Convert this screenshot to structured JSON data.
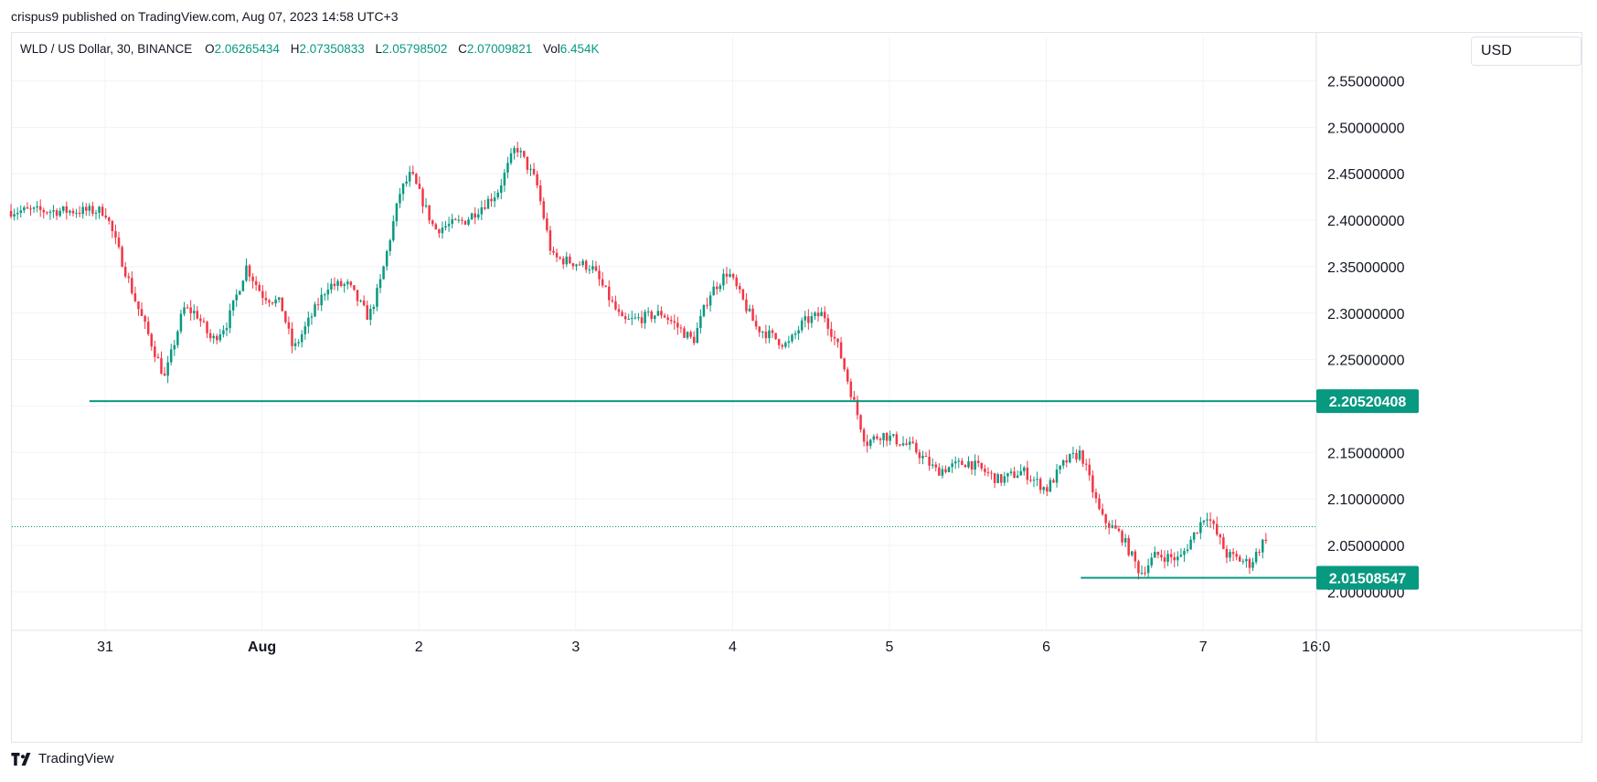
{
  "header": {
    "publisher_line": "crispus9 published on TradingView.com, Aug 07, 2023 14:58 UTC+3"
  },
  "legend": {
    "symbol": "WLD / US Dollar, 30, BINANCE",
    "open_label": "O",
    "open": "2.06265434",
    "high_label": "H",
    "high": "2.07350833",
    "low_label": "L",
    "low": "2.05798502",
    "close_label": "C",
    "close": "2.07009821",
    "vol_label": "Vol",
    "vol": "6.454K",
    "value_color": "#089981"
  },
  "currency_button": "USD",
  "footer": {
    "brand": "TradingView",
    "logo_icon": "tradingview-logo-icon"
  },
  "colors": {
    "up": "#089981",
    "down": "#f23645",
    "level": "#089981",
    "grid": "#f0f3fa"
  },
  "chart_data": {
    "type": "candlestick",
    "title": "",
    "xlabel": "",
    "ylabel": "",
    "x_ticks": [
      "31",
      "Aug",
      "2",
      "3",
      "4",
      "5",
      "6",
      "7",
      "16:0"
    ],
    "y_ticks": [
      "2.55000000",
      "2.50000000",
      "2.45000000",
      "2.40000000",
      "2.35000000",
      "2.30000000",
      "2.25000000",
      "2.15000000",
      "2.10000000",
      "2.05000000",
      "2.00000000"
    ],
    "ylim": [
      1.96,
      2.575
    ],
    "bars_per_day": 48,
    "x_start_day_offset": -1.54,
    "close_path": [
      [
        0,
        2.41
      ],
      [
        0.07,
        2.375
      ],
      [
        0.2,
        2.31
      ],
      [
        0.38,
        2.23
      ],
      [
        0.5,
        2.305
      ],
      [
        0.58,
        2.3
      ],
      [
        0.68,
        2.27
      ],
      [
        0.78,
        2.29
      ],
      [
        0.9,
        2.35
      ],
      [
        1.0,
        2.32
      ],
      [
        1.12,
        2.31
      ],
      [
        1.2,
        2.26
      ],
      [
        1.42,
        2.33
      ],
      [
        1.55,
        2.33
      ],
      [
        1.68,
        2.295
      ],
      [
        1.75,
        2.33
      ],
      [
        1.88,
        2.43
      ],
      [
        1.95,
        2.45
      ],
      [
        2.1,
        2.39
      ],
      [
        2.3,
        2.4
      ],
      [
        2.5,
        2.43
      ],
      [
        2.62,
        2.48
      ],
      [
        2.75,
        2.44
      ],
      [
        2.85,
        2.36
      ],
      [
        3.1,
        2.35
      ],
      [
        3.3,
        2.29
      ],
      [
        3.55,
        2.3
      ],
      [
        3.75,
        2.27
      ],
      [
        3.85,
        2.32
      ],
      [
        3.97,
        2.345
      ],
      [
        4.15,
        2.285
      ],
      [
        4.35,
        2.265
      ],
      [
        4.45,
        2.29
      ],
      [
        4.58,
        2.3
      ],
      [
        4.68,
        2.26
      ],
      [
        4.78,
        2.2
      ],
      [
        4.85,
        2.16
      ],
      [
        4.95,
        2.17
      ],
      [
        5.15,
        2.155
      ],
      [
        5.3,
        2.13
      ],
      [
        5.5,
        2.14
      ],
      [
        5.7,
        2.12
      ],
      [
        5.85,
        2.13
      ],
      [
        6.0,
        2.11
      ],
      [
        6.12,
        2.14
      ],
      [
        6.22,
        2.15
      ],
      [
        6.35,
        2.08
      ],
      [
        6.48,
        2.06
      ],
      [
        6.6,
        2.02
      ],
      [
        6.7,
        2.04
      ],
      [
        6.85,
        2.035
      ],
      [
        7.02,
        2.085
      ],
      [
        7.15,
        2.04
      ],
      [
        7.3,
        2.03
      ],
      [
        7.42,
        2.065
      ]
    ],
    "levels": [
      {
        "value": 2.20520408,
        "label": "2.20520408",
        "x_from_day": -0.1
      },
      {
        "value": 2.01508547,
        "label": "2.01508547",
        "x_from_day": 6.22
      }
    ],
    "last_price": {
      "value": 2.07009821
    }
  }
}
